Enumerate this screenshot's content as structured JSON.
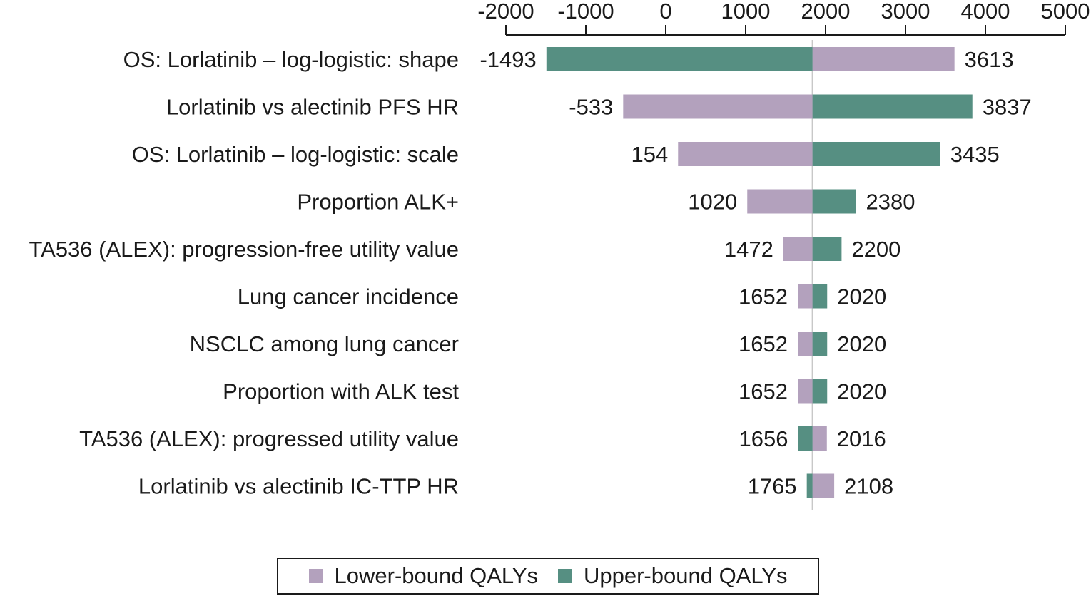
{
  "chart_data": {
    "type": "bar",
    "orientation": "horizontal",
    "subtype": "tornado",
    "xlim": [
      -2000,
      5000
    ],
    "x_ticks": [
      "-2000",
      "-1000",
      "0",
      "1000",
      "2000",
      "3000",
      "4000",
      "5000"
    ],
    "x_tick_values": [
      -2000,
      -1000,
      0,
      1000,
      2000,
      3000,
      4000,
      5000
    ],
    "axis_position": "top",
    "base_value": 1836,
    "categories": [
      "OS: Lorlatinib – log-logistic: shape",
      "Lorlatinib vs alectinib PFS HR",
      "OS: Lorlatinib – log-logistic: scale",
      "Proportion ALK+",
      "TA536 (ALEX): progression-free utility value",
      "Lung cancer incidence",
      "NSCLC among lung cancer",
      "Proportion with ALK test",
      "TA536 (ALEX): progressed utility value",
      "Lorlatinib vs alectinib IC-TTP HR"
    ],
    "series": [
      {
        "name": "Lower-bound QALYs",
        "color": "#b3a1bd",
        "values": [
          3613,
          -533,
          154,
          1020,
          1472,
          1652,
          1652,
          1652,
          2016,
          2108
        ],
        "labels": [
          "3613",
          "-533",
          "154",
          "1020",
          "1472",
          "1652",
          "1652",
          "1652",
          "2016",
          "2108"
        ]
      },
      {
        "name": "Upper-bound QALYs",
        "color": "#568f82",
        "values": [
          -1493,
          3837,
          3435,
          2380,
          2200,
          2020,
          2020,
          2020,
          1656,
          1765
        ],
        "labels": [
          "-1493",
          "3837",
          "3435",
          "2380",
          "2200",
          "2020",
          "2020",
          "2020",
          "1656",
          "1765"
        ]
      }
    ],
    "grid": false,
    "legend_position": "bottom"
  },
  "legend": {
    "lower_label": "Lower-bound QALYs",
    "upper_label": "Upper-bound QALYs"
  }
}
